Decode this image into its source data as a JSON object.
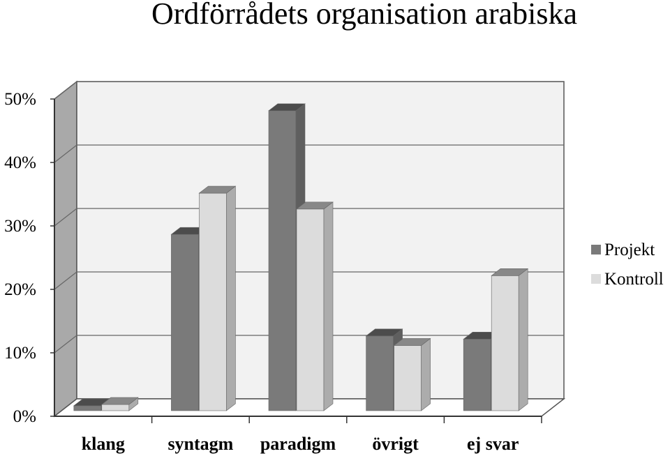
{
  "chart_data": {
    "type": "bar",
    "title": "Ordförrådets organisation arabiska",
    "categories": [
      "klang",
      "syntagm",
      "paradigm",
      "övrigt",
      "ej svar"
    ],
    "series": [
      {
        "name": "Projekt",
        "values": [
          1.0,
          28.0,
          47.5,
          12.0,
          11.5
        ],
        "color": "#7a7a7a"
      },
      {
        "name": "Kontroll",
        "values": [
          1.2,
          34.5,
          32.0,
          10.5,
          21.5
        ],
        "color": "#dcdcdc"
      }
    ],
    "yticks": [
      "0%",
      "10%",
      "20%",
      "30%",
      "40%",
      "50%"
    ],
    "ylim": [
      0,
      50
    ],
    "grid": true,
    "legend_position": "right",
    "style": "3d-clustered-column"
  }
}
